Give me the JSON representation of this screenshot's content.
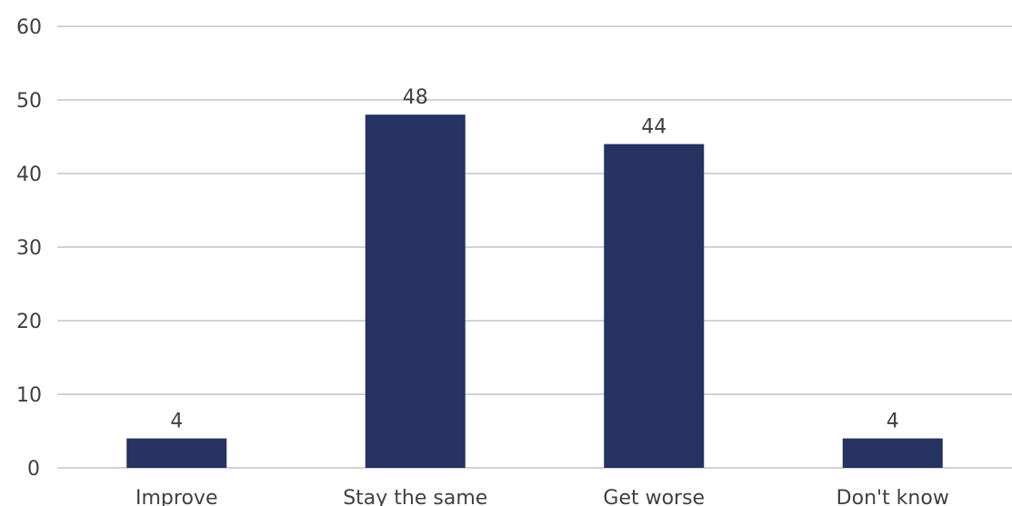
{
  "chart_data": {
    "type": "bar",
    "categories": [
      "Improve",
      "Stay the same",
      "Get worse",
      "Don't know"
    ],
    "values": [
      4,
      48,
      44,
      4
    ],
    "data_labels": [
      "4",
      "48",
      "44",
      "4"
    ],
    "title": "",
    "xlabel": "",
    "ylabel": "",
    "ylim": [
      0,
      60
    ],
    "yticks": [
      0,
      10,
      20,
      30,
      40,
      50,
      60
    ],
    "ytick_labels": [
      "0",
      "10",
      "20",
      "30",
      "40",
      "50",
      "60"
    ],
    "grid": true,
    "legend": "none",
    "bar_color": "#253262",
    "grid_color": "#a6a6a6",
    "text_color": "#404040"
  }
}
